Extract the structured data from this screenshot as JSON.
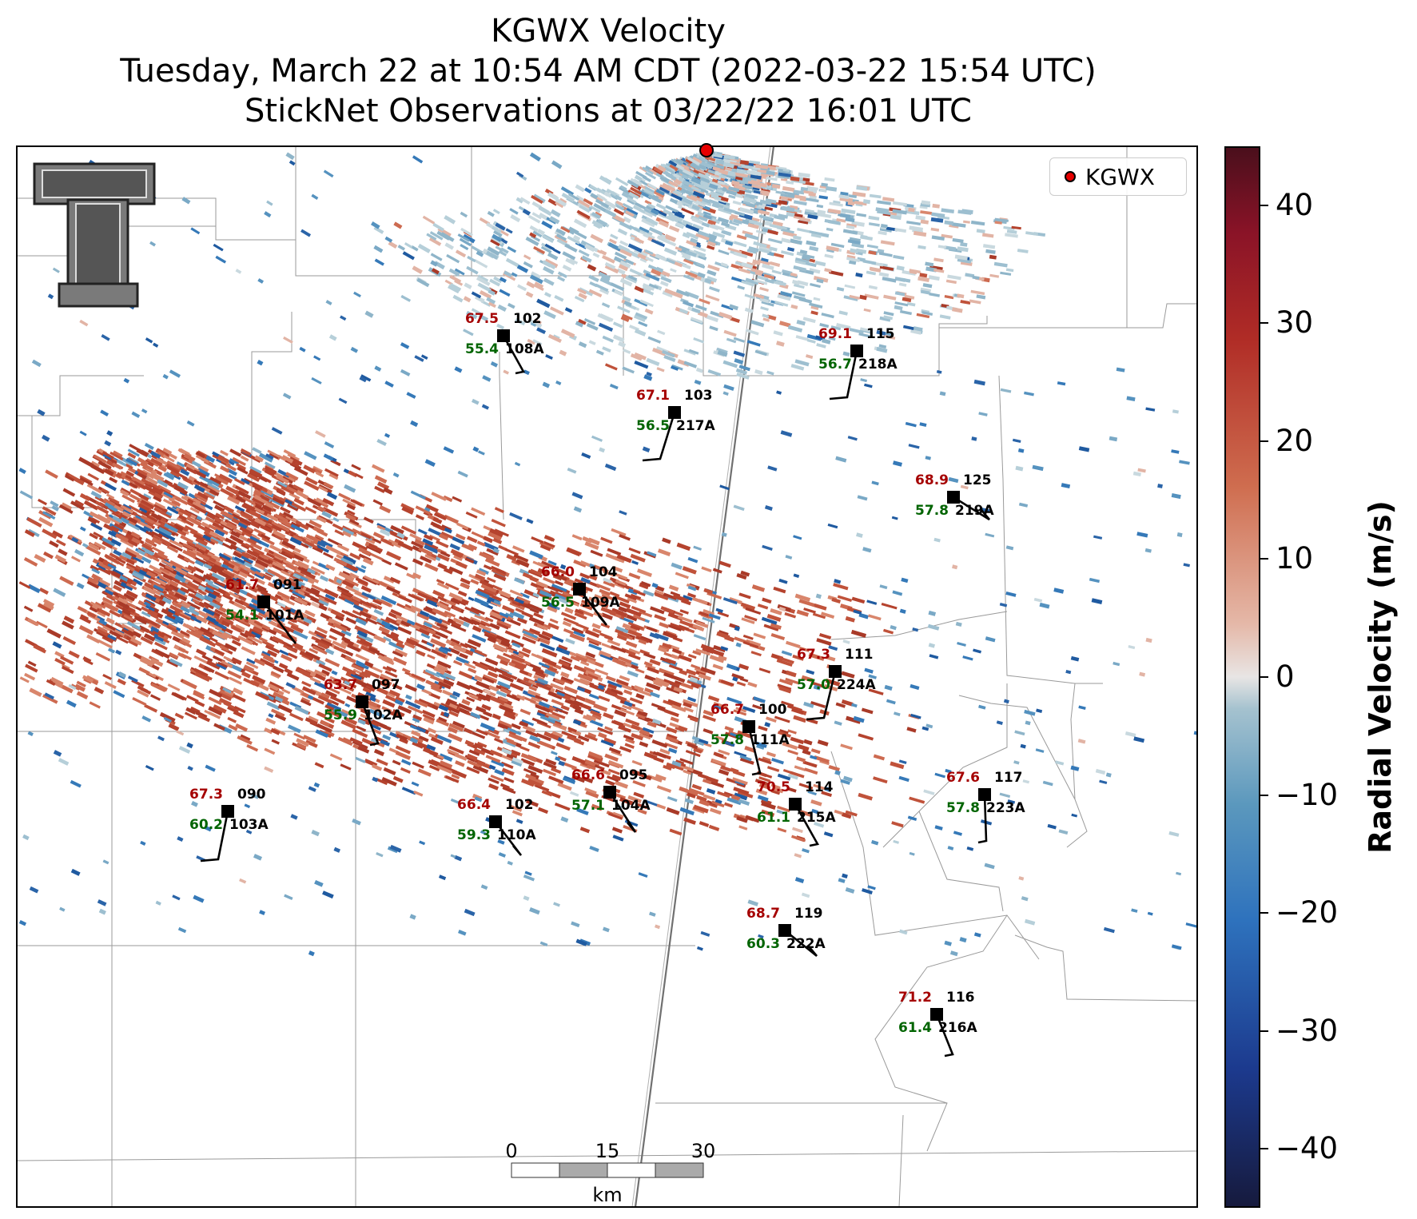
{
  "title": {
    "line1": "KGWX Velocity",
    "line2": "Tuesday, March 22 at 10:54 AM CDT (2022-03-22 15:54 UTC)",
    "line3": "StickNet Observations at 03/22/22 16:01 UTC"
  },
  "legend": {
    "label": "KGWX",
    "marker_color": "#e60000"
  },
  "colorbar": {
    "title": "Radial Velocity (m/s)",
    "range": [
      -45,
      45
    ],
    "ticks": [
      "40",
      "30",
      "20",
      "10",
      "0",
      "−10",
      "−20",
      "−30",
      "−40"
    ]
  },
  "scalebar": {
    "labels": [
      "0",
      "15",
      "30"
    ],
    "unit": "km"
  },
  "stations": [
    {
      "id": "108A",
      "temp": "67.5",
      "dew": "55.4",
      "dir": "102"
    },
    {
      "id": "115_218A",
      "temp": "69.1",
      "dew": "56.7",
      "dir": "115",
      "name": "218A"
    },
    {
      "id": "217A",
      "temp": "67.1",
      "dew": "56.5",
      "dir": "103"
    },
    {
      "id": "219A",
      "temp": "68.9",
      "dew": "57.8",
      "dir": "125"
    },
    {
      "id": "101A",
      "temp": "61.7",
      "dew": "54.1",
      "dir": "091"
    },
    {
      "id": "109A",
      "temp": "66.0",
      "dew": "56.5",
      "dir": "104"
    },
    {
      "id": "224A",
      "temp": "67.3",
      "dew": "57.0",
      "dir": "111"
    },
    {
      "id": "102A",
      "temp": "63.7",
      "dew": "55.9",
      "dir": "097"
    },
    {
      "id": "111A",
      "temp": "66.7",
      "dew": "57.8",
      "dir": "100"
    },
    {
      "id": "104A",
      "temp": "66.6",
      "dew": "57.1",
      "dir": "095"
    },
    {
      "id": "215A",
      "temp": "70.5",
      "dew": "61.1",
      "dir": "114"
    },
    {
      "id": "223A",
      "temp": "67.6",
      "dew": "57.8",
      "dir": "117"
    },
    {
      "id": "103A",
      "temp": "67.3",
      "dew": "60.2",
      "dir": "090"
    },
    {
      "id": "110A",
      "temp": "66.4",
      "dew": "59.3",
      "dir": "102"
    },
    {
      "id": "222A",
      "temp": "68.7",
      "dew": "60.3",
      "dir": "119"
    },
    {
      "id": "216A",
      "temp": "71.2",
      "dew": "61.4",
      "dir": "116"
    }
  ],
  "colors": {
    "temp": "#a50000",
    "dew": "#006400",
    "outbound": "#c0523a",
    "inbound": "#3579b8"
  }
}
